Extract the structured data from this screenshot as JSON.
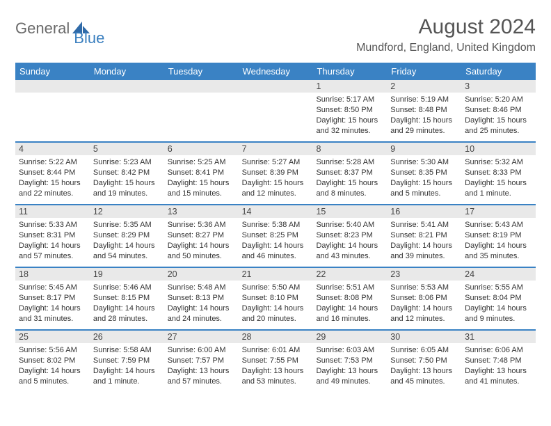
{
  "brand": {
    "part1": "General",
    "part2": "Blue"
  },
  "title": "August 2024",
  "location": "Mundford, England, United Kingdom",
  "dow": [
    "Sunday",
    "Monday",
    "Tuesday",
    "Wednesday",
    "Thursday",
    "Friday",
    "Saturday"
  ],
  "colors": {
    "header_bar": "#3a82c4",
    "brand_gray": "#6a6a6a",
    "brand_blue": "#3a7fbf",
    "daynum_band": "#e9e9e9",
    "rule": "#3a82c4",
    "text": "#333333"
  },
  "weeks": [
    [
      {
        "day": "",
        "sunrise": "",
        "sunset": "",
        "daylight": ""
      },
      {
        "day": "",
        "sunrise": "",
        "sunset": "",
        "daylight": ""
      },
      {
        "day": "",
        "sunrise": "",
        "sunset": "",
        "daylight": ""
      },
      {
        "day": "",
        "sunrise": "",
        "sunset": "",
        "daylight": ""
      },
      {
        "day": "1",
        "sunrise": "Sunrise: 5:17 AM",
        "sunset": "Sunset: 8:50 PM",
        "daylight": "Daylight: 15 hours and 32 minutes."
      },
      {
        "day": "2",
        "sunrise": "Sunrise: 5:19 AM",
        "sunset": "Sunset: 8:48 PM",
        "daylight": "Daylight: 15 hours and 29 minutes."
      },
      {
        "day": "3",
        "sunrise": "Sunrise: 5:20 AM",
        "sunset": "Sunset: 8:46 PM",
        "daylight": "Daylight: 15 hours and 25 minutes."
      }
    ],
    [
      {
        "day": "4",
        "sunrise": "Sunrise: 5:22 AM",
        "sunset": "Sunset: 8:44 PM",
        "daylight": "Daylight: 15 hours and 22 minutes."
      },
      {
        "day": "5",
        "sunrise": "Sunrise: 5:23 AM",
        "sunset": "Sunset: 8:42 PM",
        "daylight": "Daylight: 15 hours and 19 minutes."
      },
      {
        "day": "6",
        "sunrise": "Sunrise: 5:25 AM",
        "sunset": "Sunset: 8:41 PM",
        "daylight": "Daylight: 15 hours and 15 minutes."
      },
      {
        "day": "7",
        "sunrise": "Sunrise: 5:27 AM",
        "sunset": "Sunset: 8:39 PM",
        "daylight": "Daylight: 15 hours and 12 minutes."
      },
      {
        "day": "8",
        "sunrise": "Sunrise: 5:28 AM",
        "sunset": "Sunset: 8:37 PM",
        "daylight": "Daylight: 15 hours and 8 minutes."
      },
      {
        "day": "9",
        "sunrise": "Sunrise: 5:30 AM",
        "sunset": "Sunset: 8:35 PM",
        "daylight": "Daylight: 15 hours and 5 minutes."
      },
      {
        "day": "10",
        "sunrise": "Sunrise: 5:32 AM",
        "sunset": "Sunset: 8:33 PM",
        "daylight": "Daylight: 15 hours and 1 minute."
      }
    ],
    [
      {
        "day": "11",
        "sunrise": "Sunrise: 5:33 AM",
        "sunset": "Sunset: 8:31 PM",
        "daylight": "Daylight: 14 hours and 57 minutes."
      },
      {
        "day": "12",
        "sunrise": "Sunrise: 5:35 AM",
        "sunset": "Sunset: 8:29 PM",
        "daylight": "Daylight: 14 hours and 54 minutes."
      },
      {
        "day": "13",
        "sunrise": "Sunrise: 5:36 AM",
        "sunset": "Sunset: 8:27 PM",
        "daylight": "Daylight: 14 hours and 50 minutes."
      },
      {
        "day": "14",
        "sunrise": "Sunrise: 5:38 AM",
        "sunset": "Sunset: 8:25 PM",
        "daylight": "Daylight: 14 hours and 46 minutes."
      },
      {
        "day": "15",
        "sunrise": "Sunrise: 5:40 AM",
        "sunset": "Sunset: 8:23 PM",
        "daylight": "Daylight: 14 hours and 43 minutes."
      },
      {
        "day": "16",
        "sunrise": "Sunrise: 5:41 AM",
        "sunset": "Sunset: 8:21 PM",
        "daylight": "Daylight: 14 hours and 39 minutes."
      },
      {
        "day": "17",
        "sunrise": "Sunrise: 5:43 AM",
        "sunset": "Sunset: 8:19 PM",
        "daylight": "Daylight: 14 hours and 35 minutes."
      }
    ],
    [
      {
        "day": "18",
        "sunrise": "Sunrise: 5:45 AM",
        "sunset": "Sunset: 8:17 PM",
        "daylight": "Daylight: 14 hours and 31 minutes."
      },
      {
        "day": "19",
        "sunrise": "Sunrise: 5:46 AM",
        "sunset": "Sunset: 8:15 PM",
        "daylight": "Daylight: 14 hours and 28 minutes."
      },
      {
        "day": "20",
        "sunrise": "Sunrise: 5:48 AM",
        "sunset": "Sunset: 8:13 PM",
        "daylight": "Daylight: 14 hours and 24 minutes."
      },
      {
        "day": "21",
        "sunrise": "Sunrise: 5:50 AM",
        "sunset": "Sunset: 8:10 PM",
        "daylight": "Daylight: 14 hours and 20 minutes."
      },
      {
        "day": "22",
        "sunrise": "Sunrise: 5:51 AM",
        "sunset": "Sunset: 8:08 PM",
        "daylight": "Daylight: 14 hours and 16 minutes."
      },
      {
        "day": "23",
        "sunrise": "Sunrise: 5:53 AM",
        "sunset": "Sunset: 8:06 PM",
        "daylight": "Daylight: 14 hours and 12 minutes."
      },
      {
        "day": "24",
        "sunrise": "Sunrise: 5:55 AM",
        "sunset": "Sunset: 8:04 PM",
        "daylight": "Daylight: 14 hours and 9 minutes."
      }
    ],
    [
      {
        "day": "25",
        "sunrise": "Sunrise: 5:56 AM",
        "sunset": "Sunset: 8:02 PM",
        "daylight": "Daylight: 14 hours and 5 minutes."
      },
      {
        "day": "26",
        "sunrise": "Sunrise: 5:58 AM",
        "sunset": "Sunset: 7:59 PM",
        "daylight": "Daylight: 14 hours and 1 minute."
      },
      {
        "day": "27",
        "sunrise": "Sunrise: 6:00 AM",
        "sunset": "Sunset: 7:57 PM",
        "daylight": "Daylight: 13 hours and 57 minutes."
      },
      {
        "day": "28",
        "sunrise": "Sunrise: 6:01 AM",
        "sunset": "Sunset: 7:55 PM",
        "daylight": "Daylight: 13 hours and 53 minutes."
      },
      {
        "day": "29",
        "sunrise": "Sunrise: 6:03 AM",
        "sunset": "Sunset: 7:53 PM",
        "daylight": "Daylight: 13 hours and 49 minutes."
      },
      {
        "day": "30",
        "sunrise": "Sunrise: 6:05 AM",
        "sunset": "Sunset: 7:50 PM",
        "daylight": "Daylight: 13 hours and 45 minutes."
      },
      {
        "day": "31",
        "sunrise": "Sunrise: 6:06 AM",
        "sunset": "Sunset: 7:48 PM",
        "daylight": "Daylight: 13 hours and 41 minutes."
      }
    ]
  ]
}
